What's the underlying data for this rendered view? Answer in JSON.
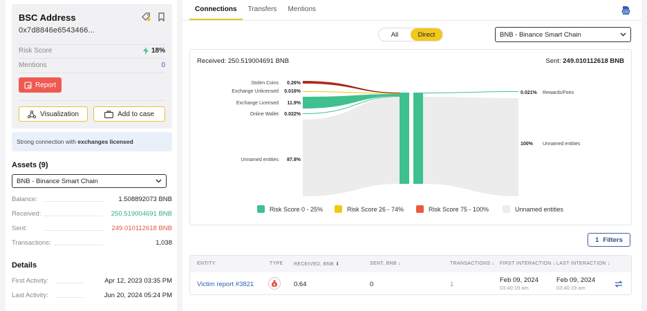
{
  "address_card": {
    "title": "BSC Address",
    "address": "0x7d8846e6543466...",
    "risk_score_label": "Risk Score",
    "risk_score_value": "18%",
    "mentions_label": "Mentions",
    "mentions_value": "0",
    "report_label": "Report",
    "visualization_label": "Visualization",
    "add_to_case_label": "Add to case"
  },
  "note": {
    "prefix": "Strong connection with ",
    "bold": "exchanges licensed"
  },
  "assets": {
    "title": "Assets (9)",
    "selected_chain": "BNB - Binance Smart Chain",
    "rows": [
      {
        "label": "Balance:",
        "value": "1.508892073 BNB"
      },
      {
        "label": "Received:",
        "value": "250.519004691 BNB"
      },
      {
        "label": "Sent:",
        "value": "249.010112618 BNB"
      },
      {
        "label": "Transactions:",
        "value": "1,038"
      }
    ]
  },
  "details": {
    "title": "Details",
    "rows": [
      {
        "label": "First Activity:",
        "value": "Apr 12, 2023 03:35 PM"
      },
      {
        "label": "Last Activity:",
        "value": "Jun 20, 2024 05:24 PM"
      }
    ]
  },
  "tabs": [
    "Connections",
    "Transfers",
    "Mentions"
  ],
  "toggle": {
    "all": "All",
    "direct": "Direct"
  },
  "chain_select": "BNB - Binance Smart Chain",
  "chart": {
    "received_label": "Received:",
    "received_value": "250.519004691 BNB",
    "sent_label": "Sent:",
    "sent_value": "249.010112618 BNB",
    "left_flows": [
      {
        "name": "Stolen Coins",
        "pct": "0.26%",
        "color": "#c0392b"
      },
      {
        "name": "Exchange Unlicensed",
        "pct": "0.016%",
        "color": "#f2c811"
      },
      {
        "name": "Exchange Licensed",
        "pct": "11.9%",
        "color": "#3ec08f"
      },
      {
        "name": "Online Wallet",
        "pct": "0.022%",
        "color": "#3ec08f"
      },
      {
        "name": "Unnamed entities",
        "pct": "87.8%",
        "color": "#ececec"
      }
    ],
    "right_flows": [
      {
        "name": "Rewards/Fees",
        "pct": "0.021%"
      },
      {
        "name": "Unnamed entities",
        "pct": "100%"
      }
    ],
    "legend": [
      {
        "label": "Risk Score 0 - 25%",
        "color": "#3ec08f"
      },
      {
        "label": "Risk Score 26 - 74%",
        "color": "#f2c811"
      },
      {
        "label": "Risk Score 75 - 100%",
        "color": "#ec5a3e"
      },
      {
        "label": "Unnamed entities",
        "color": "#ececec"
      }
    ]
  },
  "filters": {
    "count": "1",
    "label": "Filters"
  },
  "table": {
    "headers": [
      "ENTITY",
      "TYPE",
      "RECEIVED, BNB ⬇",
      "SENT, BNB ↓",
      "TRANSACTIONS ↓",
      "FIRST INTERACTION ↓",
      "LAST INTERACTION ↓"
    ],
    "row": {
      "entity": "Victim report #3821",
      "received": "0.64",
      "sent": "0",
      "transactions": "1",
      "first_date": "Feb 09, 2024",
      "first_time": "03:40:19 am",
      "last_date": "Feb 09, 2024",
      "last_time": "03:40:19 am"
    }
  }
}
